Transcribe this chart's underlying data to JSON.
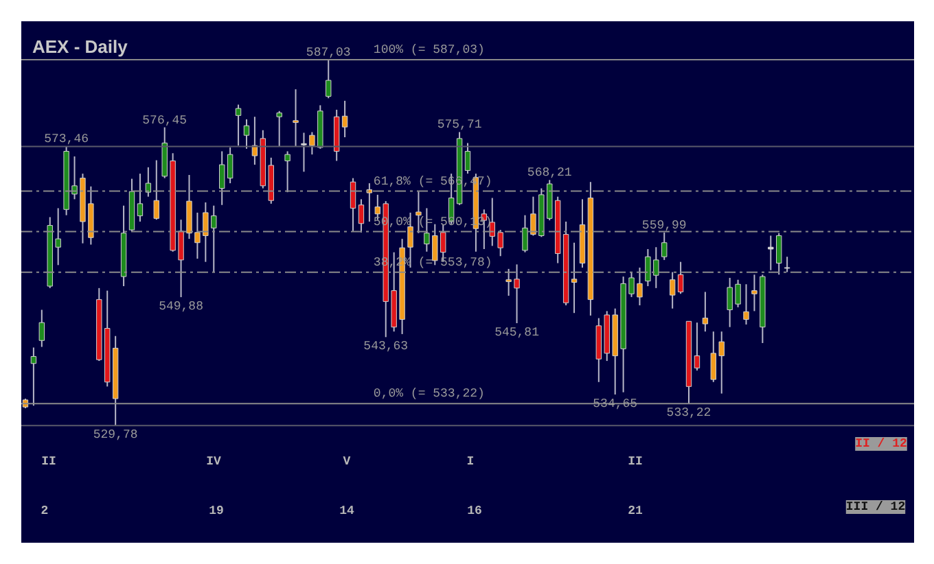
{
  "chart_data": {
    "type": "candlestick",
    "title": "AEX - Daily",
    "categories": [
      null,
      null,
      null,
      null,
      null,
      null,
      null,
      null,
      null,
      null,
      null,
      null,
      null,
      null,
      null,
      null,
      null,
      null,
      null,
      null,
      null,
      null,
      null,
      null,
      null,
      null,
      null,
      null,
      null,
      null,
      null,
      null,
      null,
      null,
      null,
      null,
      null,
      null,
      null,
      null,
      null,
      null,
      null,
      null,
      null,
      null,
      null,
      null,
      null,
      null,
      null,
      null,
      null,
      null,
      null,
      null,
      null,
      null,
      null,
      null,
      null,
      null,
      null,
      null,
      null,
      null,
      null,
      null,
      null,
      null,
      null,
      null,
      null,
      null,
      null,
      null,
      null,
      null,
      null,
      null,
      null,
      null,
      null,
      null,
      null,
      null,
      null,
      null,
      null,
      null,
      null,
      null,
      null,
      null
    ],
    "ohlc": [
      [
        533.8,
        534.0,
        532.5,
        532.7
      ],
      [
        539.5,
        542.0,
        532.9,
        540.6
      ],
      [
        543.1,
        547.9,
        542.1,
        545.9
      ],
      [
        551.6,
        562.4,
        551.3,
        561.1
      ],
      [
        557.7,
        563.8,
        554.9,
        559.0
      ],
      [
        563.6,
        573.46,
        562.7,
        572.7
      ],
      [
        566.0,
        571.9,
        565.2,
        567.3
      ],
      [
        568.5,
        569.2,
        558.3,
        561.7
      ],
      [
        564.5,
        567.2,
        558.1,
        559.2
      ],
      [
        549.5,
        551.3,
        539.9,
        540.1
      ],
      [
        545.0,
        550.9,
        535.9,
        536.6
      ],
      [
        541.9,
        543.8,
        529.78,
        534.0
      ],
      [
        553.1,
        564.2,
        551.6,
        559.9
      ],
      [
        560.4,
        568.4,
        560.2,
        566.4
      ],
      [
        562.6,
        569.2,
        561.7,
        564.5
      ],
      [
        566.3,
        570.2,
        565.6,
        567.7
      ],
      [
        565.0,
        571.3,
        562.0,
        562.2
      ],
      [
        568.8,
        576.45,
        568.5,
        574.0
      ],
      [
        571.2,
        572.4,
        557.0,
        557.2
      ],
      [
        560.2,
        562.0,
        549.88,
        555.7
      ],
      [
        564.9,
        569.0,
        559.0,
        559.9
      ],
      [
        560.0,
        563.1,
        555.9,
        558.4
      ],
      [
        563.1,
        564.7,
        555.4,
        559.5
      ],
      [
        560.7,
        564.2,
        553.8,
        562.6
      ],
      [
        566.9,
        572.7,
        564.3,
        570.6
      ],
      [
        568.5,
        573.3,
        567.7,
        572.2
      ],
      [
        578.3,
        580.0,
        573.6,
        579.4
      ],
      [
        575.2,
        577.7,
        573.1,
        576.7
      ],
      [
        573.6,
        578.1,
        570.6,
        572.0
      ],
      [
        574.7,
        576.0,
        566.9,
        567.3
      ],
      [
        570.5,
        571.7,
        564.5,
        565.0
      ],
      [
        578.1,
        579.0,
        573.5,
        578.7
      ],
      [
        571.2,
        572.7,
        566.3,
        572.2
      ],
      [
        577.5,
        582.4,
        573.5,
        577.2
      ],
      [
        573.9,
        575.6,
        569.5,
        573.7
      ],
      [
        575.2,
        575.7,
        572.2,
        573.6
      ],
      [
        573.3,
        579.9,
        573.1,
        579.0
      ],
      [
        581.3,
        587.03,
        581.0,
        583.8
      ],
      [
        578.1,
        579.2,
        571.2,
        572.7
      ],
      [
        578.2,
        580.6,
        574.9,
        576.5
      ],
      [
        567.9,
        568.5,
        560.2,
        563.8
      ],
      [
        564.3,
        565.2,
        560.0,
        561.4
      ],
      [
        566.7,
        567.7,
        561.7,
        566.2
      ],
      [
        564.0,
        565.9,
        562.0,
        562.9
      ],
      [
        564.5,
        564.9,
        543.63,
        549.2
      ],
      [
        550.9,
        556.9,
        544.5,
        545.2
      ],
      [
        557.6,
        559.0,
        544.1,
        546.4
      ],
      [
        560.9,
        563.1,
        554.5,
        557.7
      ],
      [
        563.2,
        566.4,
        559.9,
        562.7
      ],
      [
        558.2,
        563.8,
        557.0,
        559.9
      ],
      [
        559.5,
        561.3,
        554.9,
        555.6
      ],
      [
        560.0,
        561.2,
        555.4,
        556.9
      ],
      [
        561.7,
        569.2,
        561.3,
        565.4
      ],
      [
        564.5,
        575.71,
        564.3,
        574.7
      ],
      [
        569.7,
        574.0,
        569.2,
        572.7
      ],
      [
        568.6,
        569.2,
        557.0,
        560.6
      ],
      [
        562.9,
        563.6,
        557.4,
        561.9
      ],
      [
        561.6,
        565.4,
        557.9,
        559.4
      ],
      [
        560.0,
        560.4,
        556.3,
        557.6
      ],
      [
        552.6,
        554.3,
        550.1,
        552.3
      ],
      [
        552.7,
        555.0,
        545.81,
        551.3
      ],
      [
        557.2,
        562.7,
        556.9,
        560.7
      ],
      [
        562.9,
        565.6,
        559.5,
        559.7
      ],
      [
        559.5,
        566.9,
        559.3,
        565.9
      ],
      [
        562.2,
        568.21,
        561.9,
        567.6
      ],
      [
        565.0,
        565.6,
        555.2,
        556.7
      ],
      [
        559.7,
        561.7,
        548.6,
        549.0
      ],
      [
        552.7,
        558.4,
        547.4,
        552.2
      ],
      [
        561.2,
        565.2,
        554.5,
        555.2
      ],
      [
        565.4,
        567.9,
        547.0,
        549.5
      ],
      [
        545.4,
        546.6,
        536.6,
        540.2
      ],
      [
        547.1,
        547.7,
        539.9,
        541.1
      ],
      [
        547.1,
        548.1,
        534.65,
        540.7
      ],
      [
        541.8,
        553.1,
        535.0,
        552.0
      ],
      [
        550.4,
        553.8,
        549.9,
        552.9
      ],
      [
        552.0,
        554.5,
        548.6,
        549.9
      ],
      [
        552.4,
        557.4,
        551.6,
        556.2
      ],
      [
        553.3,
        557.7,
        551.3,
        555.7
      ],
      [
        556.2,
        559.99,
        555.7,
        558.4
      ],
      [
        552.6,
        553.8,
        548.1,
        550.2
      ],
      [
        553.4,
        555.4,
        550.4,
        550.7
      ],
      [
        546.1,
        546.1,
        533.22,
        535.9
      ],
      [
        540.7,
        545.9,
        538.4,
        538.8
      ],
      [
        546.6,
        550.7,
        544.5,
        545.7
      ],
      [
        541.1,
        544.5,
        536.6,
        537.0
      ],
      [
        542.9,
        544.5,
        534.8,
        540.7
      ],
      [
        547.9,
        552.9,
        545.2,
        551.4
      ],
      [
        548.8,
        552.6,
        548.3,
        551.9
      ],
      [
        547.6,
        551.9,
        545.6,
        546.4
      ],
      [
        550.9,
        553.4,
        547.7,
        550.4
      ],
      [
        545.2,
        553.4,
        542.7,
        553.1
      ],
      [
        557.7,
        559.5,
        554.1,
        557.4
      ],
      [
        555.2,
        559.9,
        553.4,
        559.5
      ],
      [
        554.5,
        556.2,
        553.8,
        554.4
      ]
    ],
    "colors": [
      "#f39c1e",
      "#1e8c1e",
      "#1e8c1e",
      "#1e8c1e",
      "#1e8c1e",
      "#1e8c1e",
      "#1e8c1e",
      "#f39c1e",
      "#f39c1e",
      "#e0161a",
      "#e0161a",
      "#f39c1e",
      "#1e8c1e",
      "#1e8c1e",
      "#1e8c1e",
      "#1e8c1e",
      "#f39c1e",
      "#1e8c1e",
      "#e0161a",
      "#e0161a",
      "#f39c1e",
      "#f39c1e",
      "#f39c1e",
      "#1e8c1e",
      "#1e8c1e",
      "#1e8c1e",
      "#1e8c1e",
      "#1e8c1e",
      "#f39c1e",
      "#e0161a",
      "#e0161a",
      "#1e8c1e",
      "#1e8c1e",
      "#f39c1e",
      "#d8d8d8",
      "#f39c1e",
      "#1e8c1e",
      "#1e8c1e",
      "#e0161a",
      "#f39c1e",
      "#e0161a",
      "#e0161a",
      "#f39c1e",
      "#f39c1e",
      "#e0161a",
      "#e0161a",
      "#f39c1e",
      "#f39c1e",
      "#f39c1e",
      "#1e8c1e",
      "#f39c1e",
      "#e0161a",
      "#1e8c1e",
      "#1e8c1e",
      "#1e8c1e",
      "#f39c1e",
      "#e0161a",
      "#e0161a",
      "#e0161a",
      "#f39c1e",
      "#e0161a",
      "#1e8c1e",
      "#f39c1e",
      "#1e8c1e",
      "#1e8c1e",
      "#e0161a",
      "#e0161a",
      "#f39c1e",
      "#f39c1e",
      "#f39c1e",
      "#e0161a",
      "#e0161a",
      "#f39c1e",
      "#1e8c1e",
      "#1e8c1e",
      "#f39c1e",
      "#1e8c1e",
      "#1e8c1e",
      "#1e8c1e",
      "#f39c1e",
      "#e0161a",
      "#e0161a",
      "#e0161a",
      "#f39c1e",
      "#f39c1e",
      "#f39c1e",
      "#1e8c1e",
      "#1e8c1e",
      "#f39c1e",
      "#f39c1e",
      "#1e8c1e",
      "#d8d8d8",
      "#1e8c1e",
      "#d8d8d8"
    ],
    "ref_lines": [
      {
        "axis": "y",
        "value": 587.03,
        "label": "100% (= 587,03)",
        "color": "#8a8a8a",
        "line_style": "solid"
      },
      {
        "axis": "y",
        "value": 573.46,
        "color": "#5a5a6a",
        "line_style": "solid"
      },
      {
        "axis": "y",
        "value": 566.47,
        "label": "61,8% (= 566,47)",
        "color": "#8a8a8a",
        "line_style": "dashed"
      },
      {
        "axis": "y",
        "value": 560.13,
        "label": "50,0% (= 560,13)",
        "color": "#8a8a8a",
        "line_style": "dashed"
      },
      {
        "axis": "y",
        "value": 553.78,
        "label": "38,2% (= 553,78)",
        "color": "#8a8a8a",
        "line_style": "dashed"
      },
      {
        "axis": "y",
        "value": 533.22,
        "label": "0,0% (= 533,22)",
        "color": "#8a8a8a",
        "line_style": "solid"
      },
      {
        "axis": "y",
        "value": 529.78,
        "color": "#5a5a6a",
        "line_style": "solid"
      }
    ],
    "annotations": [
      "II",
      "IV",
      "V",
      "I",
      "II",
      "2",
      "19",
      "14",
      "16",
      "21",
      "II / 12",
      "III / 12",
      {
        "text": "573,46",
        "y": 573.46
      },
      {
        "text": "529,78",
        "y": 529.78
      },
      {
        "text": "587,03",
        "y": 587.03
      },
      {
        "text": "576,45",
        "y": 576.45
      },
      {
        "text": "549,88",
        "y": 549.88
      },
      {
        "text": "575,71",
        "y": 575.71
      },
      {
        "text": "543,63",
        "y": 543.63
      },
      {
        "text": "545,81",
        "y": 545.81
      },
      {
        "text": "568,21",
        "y": 568.21
      },
      {
        "text": "534,65",
        "y": 534.65
      },
      {
        "text": "559,99",
        "y": 559.99
      },
      {
        "text": "533,22",
        "y": 533.22
      }
    ]
  }
}
